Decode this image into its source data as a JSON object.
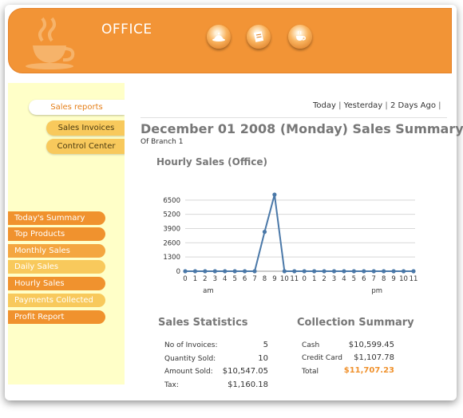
{
  "header": {
    "title": "OFFICE",
    "icons": [
      "food-tray-icon",
      "notepad-icon",
      "coffee-cup-icon"
    ]
  },
  "sidebar": {
    "subtabs": [
      {
        "label": "Sales reports",
        "active": true
      },
      {
        "label": "Sales Invoices",
        "active": false
      },
      {
        "label": "Control Center",
        "active": false
      }
    ],
    "items": [
      {
        "label": "Today's Summary",
        "color": "#f0922e"
      },
      {
        "label": "Top Products",
        "color": "#f0922e"
      },
      {
        "label": "Monthly Sales",
        "color": "#f4a640"
      },
      {
        "label": "Daily Sales",
        "color": "#f8c95c"
      },
      {
        "label": "Hourly Sales",
        "color": "#f0922e"
      },
      {
        "label": "Payments Collected",
        "color": "#f8c95c"
      },
      {
        "label": "Profit Report",
        "color": "#f0922e"
      }
    ]
  },
  "daylinks": [
    "Today",
    "Yesterday",
    "2 Days Ago"
  ],
  "page": {
    "title": "December 01 2008 (Monday) Sales Summary",
    "branch": "Of Branch 1"
  },
  "chart": {
    "title": "Hourly Sales (Office)"
  },
  "chart_data": {
    "type": "line",
    "title": "Hourly Sales (Office)",
    "categories": [
      "0",
      "1",
      "2",
      "3",
      "4",
      "5",
      "6",
      "7",
      "8",
      "9",
      "10",
      "11",
      "0",
      "1",
      "2",
      "3",
      "4",
      "5",
      "6",
      "7",
      "8",
      "9",
      "10",
      "11"
    ],
    "period_labels": [
      "am",
      "pm"
    ],
    "values": [
      0,
      0,
      0,
      0,
      0,
      0,
      0,
      0,
      3600,
      7000,
      0,
      0,
      0,
      0,
      0,
      0,
      0,
      0,
      0,
      0,
      0,
      0,
      0,
      0
    ],
    "yticks": [
      0,
      1300,
      2600,
      3900,
      5200,
      6500
    ],
    "ylim": [
      0,
      7000
    ],
    "grid": true,
    "color": "#4a78a8"
  },
  "sales_statistics": {
    "title": "Sales Statistics",
    "rows": [
      {
        "label": "No of Invoices:",
        "value": "5"
      },
      {
        "label": "Quantity Sold:",
        "value": "10"
      },
      {
        "label": "Amount Sold:",
        "value": "$10,547.05"
      },
      {
        "label": "Tax:",
        "value": "$1,160.18"
      }
    ]
  },
  "collection_summary": {
    "title": "Collection Summary",
    "rows": [
      {
        "label": "Cash",
        "value": "$10,599.45"
      },
      {
        "label": "Credit Card",
        "value": "$1,107.78"
      },
      {
        "label": "Total",
        "value": "$11,707.23"
      }
    ],
    "total_color": "#f0922e"
  }
}
